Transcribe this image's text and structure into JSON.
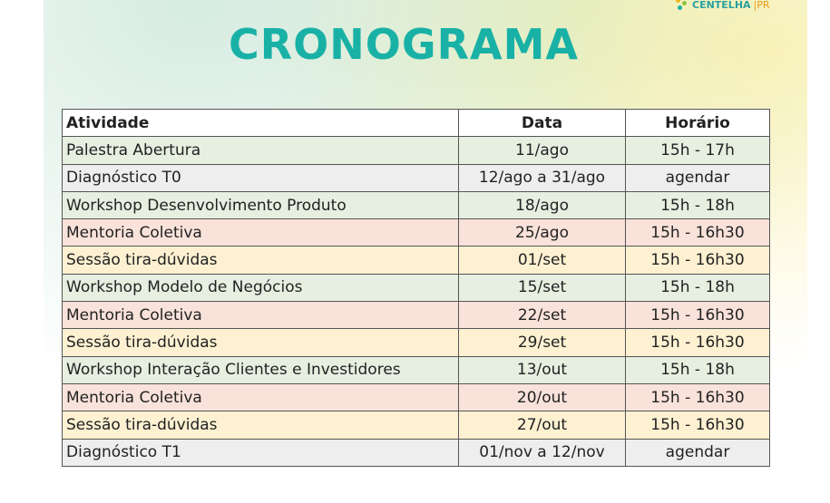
{
  "logo": {
    "name": "CENTELHA",
    "region": "PR"
  },
  "title": "CRONOGRAMA",
  "table": {
    "headers": [
      "Atividade",
      "Data",
      "Horário"
    ],
    "rows": [
      {
        "activity": "Palestra Abertura",
        "date": "11/ago",
        "time": "15h - 17h",
        "color": "#e6efe0"
      },
      {
        "activity": "Diagnóstico T0",
        "date": "12/ago a 31/ago",
        "time": "agendar",
        "color": "#eeeeee"
      },
      {
        "activity": "Workshop Desenvolvimento Produto",
        "date": "18/ago",
        "time": "15h - 18h",
        "color": "#e6efe0"
      },
      {
        "activity": "Mentoria Coletiva",
        "date": "25/ago",
        "time": "15h - 16h30",
        "color": "#f9e2da"
      },
      {
        "activity": "Sessão tira-dúvidas",
        "date": "01/set",
        "time": "15h - 16h30",
        "color": "#fdf1d2"
      },
      {
        "activity": "Workshop Modelo de Negócios",
        "date": "15/set",
        "time": "15h - 18h",
        "color": "#e6efe0"
      },
      {
        "activity": "Mentoria Coletiva",
        "date": "22/set",
        "time": "15h - 16h30",
        "color": "#f9e2da"
      },
      {
        "activity": "Sessão tira-dúvidas",
        "date": "29/set",
        "time": "15h - 16h30",
        "color": "#fdf1d2"
      },
      {
        "activity": "Workshop Interação Clientes e Investidores",
        "date": "13/out",
        "time": "15h - 18h",
        "color": "#e6efe0"
      },
      {
        "activity": "Mentoria Coletiva",
        "date": "20/out",
        "time": "15h - 16h30",
        "color": "#f9e2da"
      },
      {
        "activity": "Sessão tira-dúvidas",
        "date": "27/out",
        "time": "15h - 16h30",
        "color": "#fdf1d2"
      },
      {
        "activity": "Diagnóstico T1",
        "date": "01/nov a 12/nov",
        "time": "agendar",
        "color": "#eeeeee"
      }
    ]
  }
}
